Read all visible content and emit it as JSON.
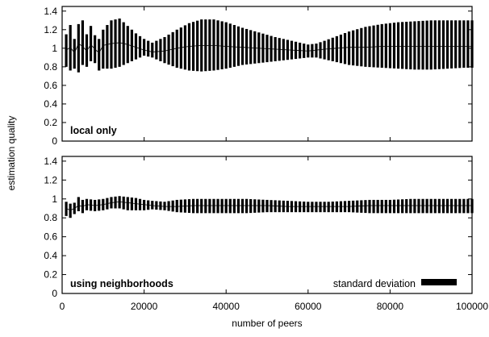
{
  "chart_data": {
    "type": "errorbar",
    "shared_axes": {
      "xlabel": "number of peers",
      "ylabel": "estimation quality",
      "xlim": [
        0,
        100000
      ],
      "ylim": [
        0,
        1.45
      ],
      "x_ticks": [
        0,
        20000,
        40000,
        60000,
        80000,
        100000
      ],
      "y_ticks": [
        0,
        0.2,
        0.4,
        0.6,
        0.8,
        1,
        1.2,
        1.4
      ],
      "grid": false
    },
    "legend": {
      "position": "bottom-right",
      "entries": [
        "standard deviation"
      ]
    },
    "panels": [
      {
        "label": "local only",
        "series": [
          {
            "name": "standard deviation",
            "x": [
              1000,
              2000,
              3000,
              4000,
              5000,
              6000,
              7000,
              8000,
              9000,
              10000,
              12000,
              14000,
              16000,
              18000,
              20000,
              22000,
              25000,
              28000,
              31000,
              34000,
              37000,
              40000,
              44000,
              48000,
              52000,
              56000,
              60000,
              62000,
              64000,
              67000,
              70000,
              74000,
              78000,
              82000,
              86000,
              90000,
              94000,
              98000,
              100000
            ],
            "mean": [
              0.98,
              1.01,
              0.95,
              1.05,
              1.02,
              0.97,
              1.04,
              0.99,
              0.95,
              1.03,
              1.05,
              1.06,
              1.04,
              1.01,
              0.98,
              0.96,
              0.97,
              1.0,
              1.02,
              1.03,
              1.03,
              1.02,
              1.01,
              1.0,
              0.99,
              0.98,
              0.97,
              0.98,
              0.99,
              1.0,
              1.01,
              1.01,
              1.02,
              1.02,
              1.02,
              1.02,
              1.02,
              1.02,
              1.02
            ],
            "lower": [
              0.8,
              0.76,
              0.78,
              0.74,
              0.82,
              0.8,
              0.86,
              0.84,
              0.76,
              0.78,
              0.78,
              0.8,
              0.84,
              0.88,
              0.92,
              0.9,
              0.84,
              0.79,
              0.76,
              0.75,
              0.76,
              0.78,
              0.82,
              0.84,
              0.86,
              0.88,
              0.9,
              0.9,
              0.88,
              0.85,
              0.82,
              0.8,
              0.79,
              0.78,
              0.77,
              0.77,
              0.78,
              0.79,
              0.79
            ],
            "upper": [
              1.15,
              1.25,
              1.1,
              1.26,
              1.3,
              1.15,
              1.24,
              1.14,
              1.1,
              1.2,
              1.3,
              1.32,
              1.24,
              1.16,
              1.1,
              1.06,
              1.12,
              1.2,
              1.27,
              1.31,
              1.31,
              1.28,
              1.22,
              1.17,
              1.12,
              1.08,
              1.04,
              1.05,
              1.08,
              1.13,
              1.18,
              1.23,
              1.26,
              1.28,
              1.29,
              1.3,
              1.3,
              1.3,
              1.3
            ]
          }
        ]
      },
      {
        "label": "using neighborhoods",
        "series": [
          {
            "name": "standard deviation",
            "x": [
              1000,
              2000,
              3000,
              4000,
              5000,
              6000,
              8000,
              10000,
              12000,
              14000,
              16000,
              18000,
              20000,
              22000,
              25000,
              28000,
              32000,
              36000,
              40000,
              45000,
              50000,
              55000,
              60000,
              65000,
              70000,
              75000,
              80000,
              85000,
              90000,
              95000,
              100000
            ],
            "mean": [
              0.9,
              0.88,
              0.9,
              0.93,
              0.92,
              0.94,
              0.93,
              0.94,
              0.96,
              0.97,
              0.96,
              0.95,
              0.94,
              0.93,
              0.92,
              0.92,
              0.93,
              0.93,
              0.93,
              0.93,
              0.93,
              0.92,
              0.92,
              0.92,
              0.92,
              0.93,
              0.93,
              0.93,
              0.93,
              0.93,
              0.93
            ],
            "lower": [
              0.82,
              0.8,
              0.84,
              0.87,
              0.85,
              0.88,
              0.87,
              0.88,
              0.9,
              0.9,
              0.88,
              0.88,
              0.88,
              0.89,
              0.88,
              0.86,
              0.85,
              0.85,
              0.85,
              0.85,
              0.86,
              0.86,
              0.86,
              0.86,
              0.86,
              0.85,
              0.85,
              0.85,
              0.85,
              0.85,
              0.85
            ],
            "upper": [
              0.97,
              0.95,
              0.96,
              1.02,
              0.99,
              1.0,
              0.99,
              1.0,
              1.02,
              1.03,
              1.02,
              1.01,
              0.99,
              0.98,
              0.97,
              0.99,
              1.0,
              1.0,
              1.0,
              1.0,
              0.99,
              0.98,
              0.97,
              0.97,
              0.98,
              0.99,
              0.99,
              1.0,
              1.0,
              1.0,
              1.0
            ]
          }
        ]
      }
    ]
  }
}
